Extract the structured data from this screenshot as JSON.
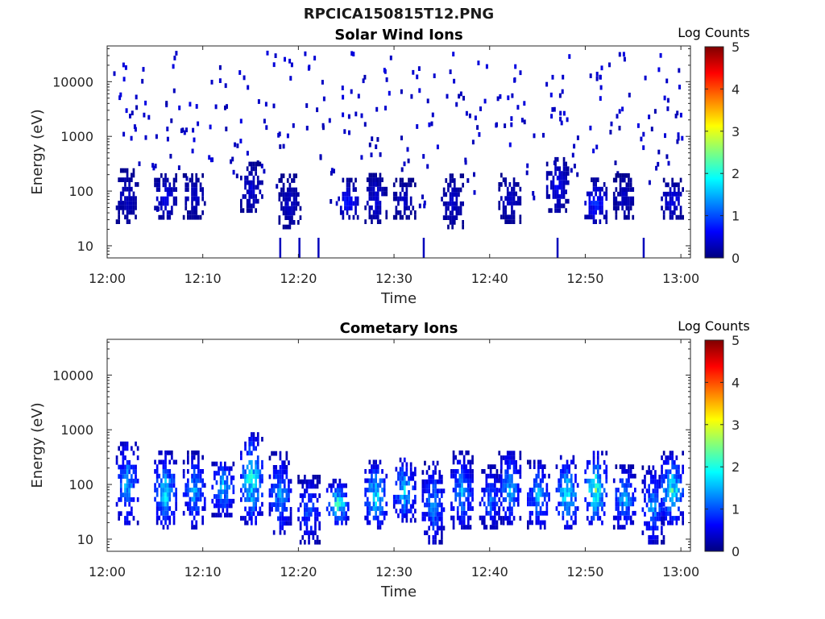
{
  "figure": {
    "title": "RPCICA150815T12.PNG"
  },
  "colormap": {
    "stops": [
      "#00007f",
      "#0000ff",
      "#007fff",
      "#00ffff",
      "#7fff7f",
      "#ffff00",
      "#ff7f00",
      "#ff0000",
      "#7f0000"
    ]
  },
  "chart_data": [
    {
      "type": "heatmap",
      "title": "Solar Wind Ions",
      "xlabel": "Time",
      "ylabel": "Energy (eV)",
      "yscale": "log",
      "xlim": [
        "12:00",
        "13:01"
      ],
      "ylim": [
        6,
        45000
      ],
      "x_ticks": [
        "12:00",
        "12:10",
        "12:20",
        "12:30",
        "12:40",
        "12:50",
        "13:00"
      ],
      "y_ticks": [
        "10",
        "100",
        "1000",
        "10000"
      ],
      "colorbar": {
        "label": "Log Counts",
        "range": [
          0,
          5
        ],
        "ticks": [
          "0",
          "1",
          "2",
          "3",
          "4",
          "5"
        ]
      },
      "grid": false,
      "scatter_cells": [
        [
          "12:01",
          9500,
          0.3
        ],
        [
          "12:02",
          3500,
          0.3
        ],
        [
          "12:03",
          1200,
          0.2
        ],
        [
          "12:04",
          5000,
          0.3
        ],
        [
          "12:05",
          250,
          0.2
        ],
        [
          "12:06",
          1800,
          0.2
        ],
        [
          "12:07",
          8000,
          0.3
        ],
        [
          "12:08",
          600,
          0.2
        ],
        [
          "12:09",
          3000,
          0.3
        ],
        [
          "12:11",
          1500,
          0.3
        ],
        [
          "12:12",
          7000,
          0.2
        ],
        [
          "12:13",
          400,
          0.2
        ],
        [
          "12:14",
          2500,
          0.3
        ],
        [
          "12:16",
          1200,
          0.2
        ],
        [
          "12:17",
          9000,
          0.3
        ],
        [
          "12:18",
          600,
          0.2
        ],
        [
          "12:19",
          3800,
          0.3
        ],
        [
          "12:21",
          8000,
          0.3
        ],
        [
          "12:22",
          1500,
          0.2
        ],
        [
          "12:23",
          300,
          0.2
        ],
        [
          "12:25",
          5000,
          0.3
        ],
        [
          "12:26",
          14000,
          0.3
        ],
        [
          "12:27",
          2000,
          0.2
        ],
        [
          "12:28",
          700,
          0.2
        ],
        [
          "12:29",
          4500,
          0.3
        ],
        [
          "12:31",
          1100,
          0.2
        ],
        [
          "12:32",
          6000,
          0.3
        ],
        [
          "12:33",
          300,
          0.2
        ],
        [
          "12:34",
          2800,
          0.3
        ],
        [
          "12:36",
          9500,
          0.3
        ],
        [
          "12:37",
          1300,
          0.2
        ],
        [
          "12:38",
          500,
          0.2
        ],
        [
          "12:39",
          4000,
          0.3
        ],
        [
          "12:41",
          800,
          0.2
        ],
        [
          "12:42",
          2200,
          0.3
        ],
        [
          "12:43",
          9000,
          0.3
        ],
        [
          "12:44",
          350,
          0.2
        ],
        [
          "12:46",
          4500,
          0.3
        ],
        [
          "12:47",
          1700,
          0.2
        ],
        [
          "12:48",
          10000,
          0.3
        ],
        [
          "12:49",
          600,
          0.2
        ],
        [
          "12:51",
          2500,
          0.3
        ],
        [
          "12:52",
          8000,
          0.3
        ],
        [
          "12:53",
          1200,
          0.2
        ],
        [
          "12:54",
          12000,
          0.3
        ],
        [
          "12:56",
          3000,
          0.3
        ],
        [
          "12:57",
          700,
          0.2
        ],
        [
          "12:58",
          5500,
          0.3
        ],
        [
          "12:59",
          1600,
          0.2
        ],
        [
          "13:00",
          4000,
          0.3
        ]
      ],
      "bursts": [
        {
          "t": "12:02",
          "e_low": 25,
          "e_high": 250,
          "peak": 0.4
        },
        {
          "t": "12:06",
          "e_low": 30,
          "e_high": 200,
          "peak": 0.6
        },
        {
          "t": "12:09",
          "e_low": 30,
          "e_high": 200,
          "peak": 0.4
        },
        {
          "t": "12:15",
          "e_low": 40,
          "e_high": 300,
          "peak": 0.5
        },
        {
          "t": "12:19",
          "e_low": 20,
          "e_high": 200,
          "peak": 0.4
        },
        {
          "t": "12:25",
          "e_low": 30,
          "e_high": 150,
          "peak": 0.8
        },
        {
          "t": "12:28",
          "e_low": 25,
          "e_high": 200,
          "peak": 0.5
        },
        {
          "t": "12:31",
          "e_low": 30,
          "e_high": 150,
          "peak": 0.4
        },
        {
          "t": "12:36",
          "e_low": 20,
          "e_high": 200,
          "peak": 0.4
        },
        {
          "t": "12:42",
          "e_low": 25,
          "e_high": 200,
          "peak": 0.4
        },
        {
          "t": "12:47",
          "e_low": 40,
          "e_high": 400,
          "peak": 0.6
        },
        {
          "t": "12:51",
          "e_low": 25,
          "e_high": 150,
          "peak": 0.9
        },
        {
          "t": "12:54",
          "e_low": 30,
          "e_high": 200,
          "peak": 0.4
        },
        {
          "t": "12:59",
          "e_low": 30,
          "e_high": 150,
          "peak": 0.6
        }
      ],
      "low_energy_streaks": [
        "12:18",
        "12:20",
        "12:22",
        "12:33",
        "12:47",
        "12:56"
      ]
    },
    {
      "type": "heatmap",
      "title": "Cometary Ions",
      "xlabel": "Time",
      "ylabel": "Energy (eV)",
      "yscale": "log",
      "xlim": [
        "12:00",
        "13:01"
      ],
      "ylim": [
        6,
        45000
      ],
      "x_ticks": [
        "12:00",
        "12:10",
        "12:20",
        "12:30",
        "12:40",
        "12:50",
        "13:00"
      ],
      "y_ticks": [
        "10",
        "100",
        "1000",
        "10000"
      ],
      "colorbar": {
        "label": "Log Counts",
        "range": [
          0,
          5
        ],
        "ticks": [
          "0",
          "1",
          "2",
          "3",
          "4",
          "5"
        ]
      },
      "grid": false,
      "bursts": [
        {
          "t": "12:02",
          "e_low": 18,
          "e_high": 600,
          "peak": 1.6
        },
        {
          "t": "12:06",
          "e_low": 15,
          "e_high": 350,
          "peak": 1.9
        },
        {
          "t": "12:09",
          "e_low": 15,
          "e_high": 350,
          "peak": 1.5
        },
        {
          "t": "12:12",
          "e_low": 25,
          "e_high": 300,
          "peak": 1.7
        },
        {
          "t": "12:15",
          "e_low": 18,
          "e_high": 800,
          "peak": 2.1
        },
        {
          "t": "12:18",
          "e_low": 12,
          "e_high": 350,
          "peak": 1.5
        },
        {
          "t": "12:21",
          "e_low": 8,
          "e_high": 150,
          "peak": 1.2
        },
        {
          "t": "12:24",
          "e_low": 18,
          "e_high": 110,
          "peak": 2.2
        },
        {
          "t": "12:28",
          "e_low": 15,
          "e_high": 250,
          "peak": 2.0
        },
        {
          "t": "12:31",
          "e_low": 20,
          "e_high": 300,
          "peak": 1.8
        },
        {
          "t": "12:34",
          "e_low": 8,
          "e_high": 250,
          "peak": 1.4
        },
        {
          "t": "12:37",
          "e_low": 15,
          "e_high": 350,
          "peak": 1.6
        },
        {
          "t": "12:40",
          "e_low": 15,
          "e_high": 200,
          "peak": 1.3
        },
        {
          "t": "12:42",
          "e_low": 18,
          "e_high": 400,
          "peak": 1.6
        },
        {
          "t": "12:45",
          "e_low": 15,
          "e_high": 250,
          "peak": 1.6
        },
        {
          "t": "12:48",
          "e_low": 15,
          "e_high": 300,
          "peak": 2.0
        },
        {
          "t": "12:51",
          "e_low": 18,
          "e_high": 350,
          "peak": 2.4
        },
        {
          "t": "12:54",
          "e_low": 15,
          "e_high": 200,
          "peak": 1.6
        },
        {
          "t": "12:57",
          "e_low": 8,
          "e_high": 200,
          "peak": 1.5
        },
        {
          "t": "12:59",
          "e_low": 18,
          "e_high": 350,
          "peak": 2.1
        }
      ]
    }
  ]
}
